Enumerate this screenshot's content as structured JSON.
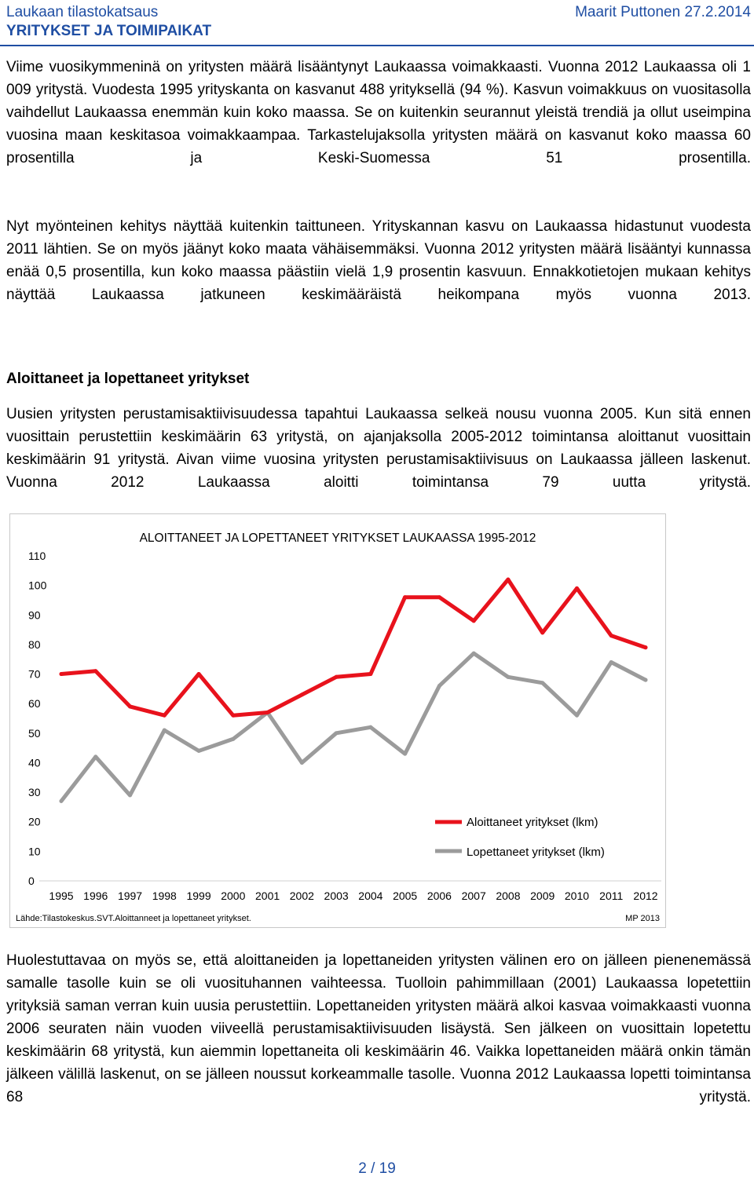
{
  "header": {
    "left_title": "Laukaan tilastokatsaus",
    "left_subtitle": "YRITYKSET JA TOIMIPAIKAT",
    "right": "Maarit Puttonen 27.2.2014"
  },
  "paragraphs": [
    "Viime vuosikymmeninä on yritysten määrä lisääntynyt Laukaassa voimakkaasti. Vuonna 2012 Laukaassa oli 1 009 yritystä. Vuodesta 1995 yrityskanta on kasvanut 488 yrityksellä (94 %). Kasvun voimakkuus on vuositasolla vaihdellut Laukaassa enemmän kuin koko maassa. Se on kuitenkin seurannut yleistä trendiä ja ollut useimpina vuosina maan keskitasoa voimakkaampaa. Tarkastelujaksolla yritysten määrä on kasvanut koko maassa 60 prosentilla ja Keski-Suomessa 51 prosentilla.",
    "Nyt myönteinen kehitys näyttää kuitenkin taittuneen. Yrityskannan kasvu on Laukaassa hidastunut vuodesta 2011 lähtien. Se on myös jäänyt koko maata vähäisemmäksi. Vuonna 2012 yritysten määrä lisääntyi kunnassa enää 0,5 prosentilla, kun koko maassa päästiin vielä 1,9 prosentin kasvuun. Ennakkotietojen mukaan kehitys näyttää Laukaassa jatkuneen keskimääräistä heikompana myös vuonna 2013.",
    "Uusien yritysten perustamisaktiivisuudessa tapahtui Laukaassa selkeä nousu vuonna 2005. Kun sitä ennen vuosittain perustettiin keskimäärin 63 yritystä, on ajanjaksolla 2005-2012 toimintansa aloittanut vuosittain keskimäärin 91 yritystä. Aivan viime vuosina yritysten perustamisaktiivisuus on Laukaassa jälleen laskenut. Vuonna 2012 Laukaassa aloitti toimintansa 79 uutta yritystä.",
    "Huolestuttavaa on myös se, että aloittaneiden ja lopettaneiden yritysten välinen ero on jälleen pienenemässä samalle tasolle kuin se oli vuosituhannen vaihteessa. Tuolloin pahimmillaan (2001) Laukaassa lopetettiin yrityksiä saman verran kuin uusia perustettiin. Lopettaneiden yritysten määrä alkoi kasvaa voimakkaasti vuonna 2006 seuraten näin vuoden viiveellä perustamisaktiivisuuden lisäystä. Sen jälkeen on vuosittain lopetettu keskimäärin 68 yritystä, kun aiemmin lopettaneita oli keskimäärin 46. Vaikka lopettaneiden määrä onkin tämän jälkeen välillä laskenut, on se jälleen noussut korkeammalle tasolle. Vuonna 2012 Laukaassa lopetti toimintansa 68 yritystä."
  ],
  "section_heading": "Aloittaneet ja lopettaneet yritykset",
  "chart_data": {
    "type": "line",
    "title": "ALOITTANEET JA LOPETTANEET YRITYKSET LAUKAASSA 1995-2012",
    "x": [
      "1995",
      "1996",
      "1997",
      "1998",
      "1999",
      "2000",
      "2001",
      "2002",
      "2003",
      "2004",
      "2005",
      "2006",
      "2007",
      "2008",
      "2009",
      "2010",
      "2011",
      "2012"
    ],
    "y_ticks": [
      "0",
      "10",
      "20",
      "30",
      "40",
      "50",
      "60",
      "70",
      "80",
      "90",
      "100",
      "110"
    ],
    "ylim": [
      0,
      110
    ],
    "series": [
      {
        "name": "Aloittaneet yritykset (lkm)",
        "color": "#e8121c",
        "values": [
          70,
          71,
          59,
          56,
          70,
          56,
          57,
          63,
          69,
          70,
          96,
          96,
          88,
          102,
          84,
          99,
          83,
          79
        ]
      },
      {
        "name": "Lopettaneet yritykset (lkm)",
        "color": "#9b9b9b",
        "values": [
          27,
          42,
          29,
          51,
          44,
          48,
          57,
          40,
          50,
          52,
          43,
          66,
          77,
          69,
          67,
          56,
          74,
          68
        ]
      }
    ],
    "legend_position": "bottom-right",
    "grid": false,
    "source": "Lähde:Tilastokeskus.SVT.Aloittanneet ja lopettaneet yritykset.",
    "credit": "MP 2013"
  },
  "page_number": "2 / 19"
}
